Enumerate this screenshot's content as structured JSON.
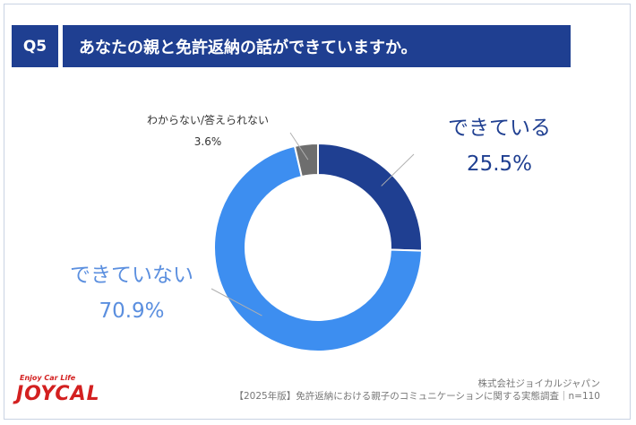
{
  "header": {
    "badge": "Q5",
    "title": "あなたの親と免許返納の話ができていますか。"
  },
  "chart_data": {
    "type": "pie",
    "donut": true,
    "categories": [
      "できている",
      "できていない",
      "わからない/答えられない"
    ],
    "values": [
      25.5,
      70.9,
      3.6
    ],
    "value_labels": [
      "25.5%",
      "70.9%",
      "3.6%"
    ],
    "colors": [
      "#1f3f91",
      "#3d8ef0",
      "#6e6e6e"
    ],
    "start": "top",
    "direction": "clockwise"
  },
  "footer": {
    "company": "株式会社ジョイカルジャパン",
    "survey": "【2025年版】免許返納における親子のコミュニケーションに関する実態調査｜n=110"
  },
  "logo": {
    "tagline": "Enjoy Car Life",
    "name": "JOYCAL"
  }
}
